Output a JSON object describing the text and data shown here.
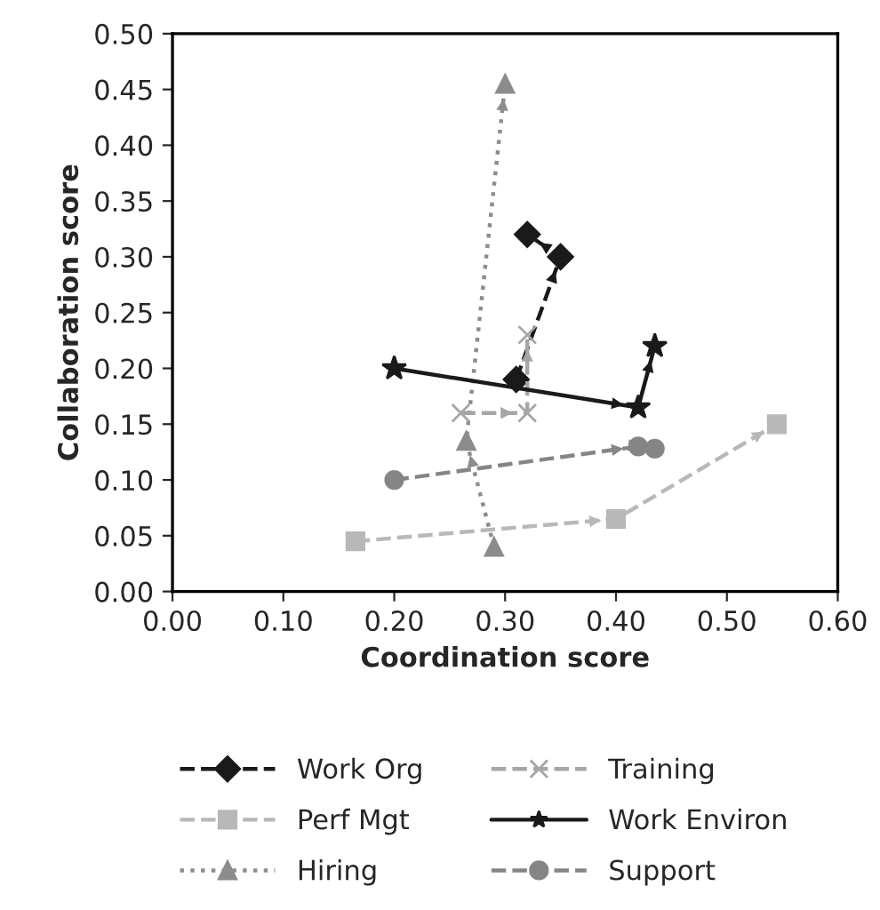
{
  "chart_data": {
    "type": "line",
    "xlabel": "Coordination score",
    "ylabel": "Collaboration score",
    "xlim": [
      0,
      0.6
    ],
    "ylim": [
      0,
      0.5
    ],
    "xticks": [
      {
        "value": 0,
        "label": "0.00"
      },
      {
        "value": 0.1,
        "label": "0.10"
      },
      {
        "value": 0.2,
        "label": "0.20"
      },
      {
        "value": 0.3,
        "label": "0.30"
      },
      {
        "value": 0.4,
        "label": "0.40"
      },
      {
        "value": 0.5,
        "label": "0.50"
      },
      {
        "value": 0.6,
        "label": "0.60"
      }
    ],
    "yticks": [
      {
        "value": 0,
        "label": "0.00"
      },
      {
        "value": 0.05,
        "label": "0.05"
      },
      {
        "value": 0.1,
        "label": "0.10"
      },
      {
        "value": 0.15,
        "label": "0.15"
      },
      {
        "value": 0.2,
        "label": "0.20"
      },
      {
        "value": 0.25,
        "label": "0.25"
      },
      {
        "value": 0.3,
        "label": "0.30"
      },
      {
        "value": 0.35,
        "label": "0.35"
      },
      {
        "value": 0.4,
        "label": "0.40"
      },
      {
        "value": 0.45,
        "label": "0.45"
      },
      {
        "value": 0.5,
        "label": "0.50"
      }
    ],
    "grid": false,
    "legend": "bottom",
    "series": [
      {
        "name": "Work Org",
        "color": "#1a1a1a",
        "marker": "diamond",
        "line_style": "dashed",
        "x": [
          0.31,
          0.35,
          0.32
        ],
        "values": [
          0.19,
          0.3,
          0.32
        ]
      },
      {
        "name": "Perf Mgt",
        "color": "#b8b8b8",
        "marker": "square",
        "line_style": "dashed",
        "x": [
          0.165,
          0.4,
          0.545
        ],
        "values": [
          0.045,
          0.065,
          0.15
        ]
      },
      {
        "name": "Hiring",
        "color": "#8c8c8c",
        "marker": "triangle",
        "line_style": "dotted",
        "x": [
          0.29,
          0.265,
          0.3
        ],
        "values": [
          0.04,
          0.135,
          0.455
        ]
      },
      {
        "name": "Training",
        "color": "#a6a6a6",
        "marker": "cross",
        "line_style": "dashed",
        "x": [
          0.26,
          0.32,
          0.32
        ],
        "values": [
          0.16,
          0.16,
          0.23
        ]
      },
      {
        "name": "Work Environ",
        "color": "#1a1a1a",
        "marker": "star",
        "line_style": "solid",
        "x": [
          0.2,
          0.42,
          0.435
        ],
        "values": [
          0.2,
          0.165,
          0.22
        ]
      },
      {
        "name": "Support",
        "color": "#858585",
        "marker": "circle",
        "line_style": "dashed",
        "x": [
          0.2,
          0.42,
          0.435
        ],
        "values": [
          0.1,
          0.13,
          0.128
        ]
      }
    ]
  }
}
